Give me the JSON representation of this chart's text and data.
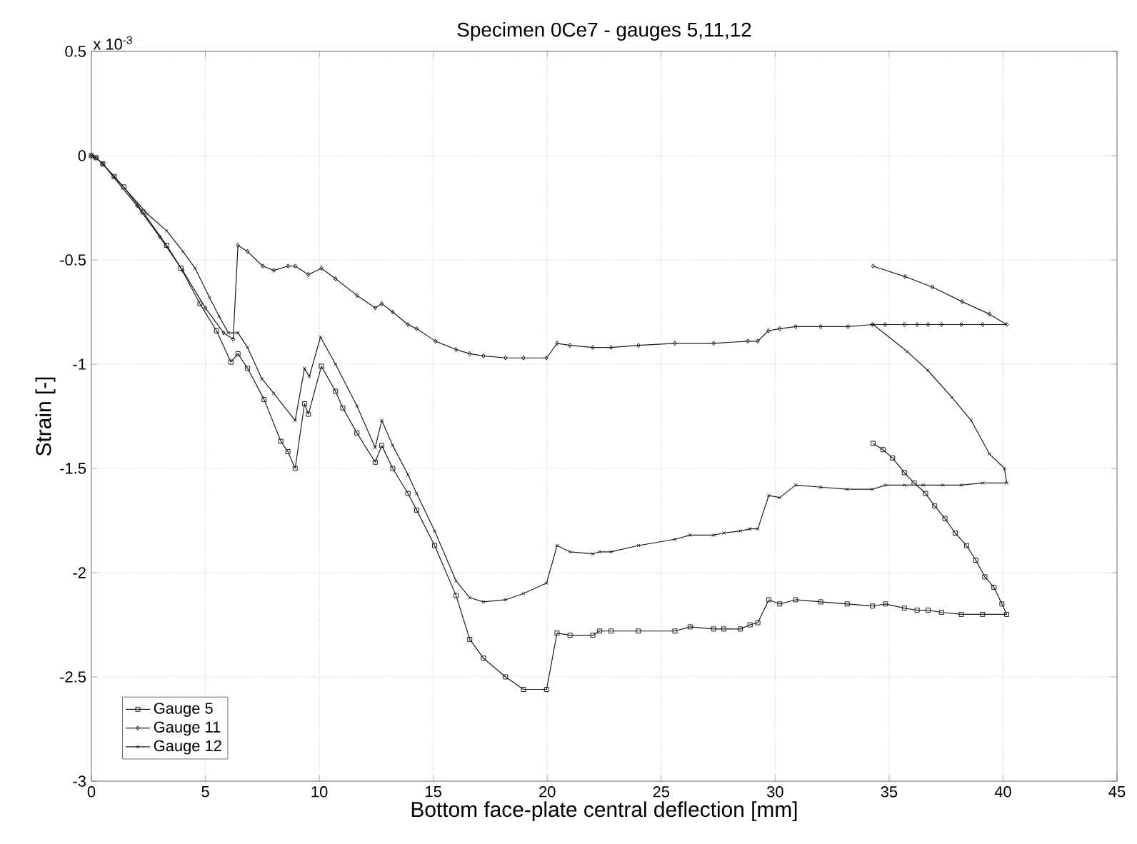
{
  "chart_data": {
    "type": "line",
    "title": "Specimen 0Ce7 - gauges 5,11,12",
    "xlabel": "Bottom face-plate central deflection [mm]",
    "ylabel": "Strain [-]",
    "annotations": [
      "x 10$^{-3}$"
    ],
    "xlim": [
      0,
      45
    ],
    "xticks": [
      0,
      5,
      10,
      15,
      20,
      25,
      30,
      35,
      40,
      45
    ],
    "ylim": [
      -3,
      0.5
    ],
    "yticks": [
      -3,
      -2.5,
      -2,
      -1.5,
      -1,
      -0.5,
      0,
      0.5
    ],
    "grid": true,
    "legend": "bottom left",
    "line_style": "solid",
    "series": [
      {
        "name": "Gauge 5",
        "color": "#1a1a1a",
        "marker": "square",
        "x": [
          0,
          0.2,
          0.5,
          1.0,
          1.42,
          2.26,
          3.3,
          3.93,
          4.76,
          5.49,
          6.12,
          6.43,
          6.85,
          7.58,
          8.31,
          8.62,
          8.94,
          9.35,
          9.52,
          10.09,
          10.71,
          11.03,
          11.65,
          12.45,
          12.74,
          13.22,
          13.89,
          14.27,
          15.06,
          16.0,
          16.6,
          17.2,
          18.17,
          18.96,
          19.97,
          20.43,
          21.0,
          22.0,
          22.3,
          22.8,
          24.0,
          25.6,
          26.27,
          27.3,
          27.75,
          28.47,
          28.9,
          29.24,
          29.72,
          30.2,
          30.9,
          32.0,
          33.16,
          34.27,
          34.84,
          35.67,
          36.23,
          36.71,
          37.3,
          38.17,
          39.1,
          40.16,
          39.95,
          39.6,
          39.2,
          38.8,
          38.4,
          37.9,
          37.45,
          37.0,
          36.6,
          36.1,
          35.67,
          35.15,
          34.73,
          34.3
        ],
        "values": [
          0,
          -0.01,
          -0.04,
          -0.1,
          -0.15,
          -0.27,
          -0.43,
          -0.54,
          -0.71,
          -0.84,
          -0.99,
          -0.95,
          -1.02,
          -1.17,
          -1.37,
          -1.42,
          -1.5,
          -1.19,
          -1.24,
          -1.01,
          -1.13,
          -1.21,
          -1.33,
          -1.47,
          -1.39,
          -1.5,
          -1.62,
          -1.7,
          -1.87,
          -2.11,
          -2.32,
          -2.41,
          -2.5,
          -2.56,
          -2.56,
          -2.29,
          -2.3,
          -2.3,
          -2.28,
          -2.28,
          -2.28,
          -2.28,
          -2.26,
          -2.27,
          -2.27,
          -2.27,
          -2.25,
          -2.24,
          -2.13,
          -2.15,
          -2.13,
          -2.14,
          -2.15,
          -2.16,
          -2.15,
          -2.17,
          -2.18,
          -2.18,
          -2.19,
          -2.2,
          -2.2,
          -2.2,
          -2.15,
          -2.07,
          -2.02,
          -1.94,
          -1.87,
          -1.81,
          -1.74,
          -1.68,
          -1.62,
          -1.57,
          -1.52,
          -1.45,
          -1.41,
          -1.38
        ]
      },
      {
        "name": "Gauge 11",
        "color": "#1a1a1a",
        "marker": "diamond",
        "x": [
          0,
          0.2,
          0.5,
          1.0,
          2.0,
          3.0,
          4.0,
          5.0,
          5.8,
          6.22,
          6.43,
          6.85,
          7.52,
          8.0,
          8.63,
          8.94,
          9.52,
          10.09,
          10.71,
          11.65,
          12.45,
          12.74,
          13.22,
          13.89,
          14.27,
          15.1,
          16.0,
          16.6,
          17.2,
          18.17,
          18.96,
          19.97,
          20.43,
          21.0,
          22.0,
          22.8,
          24.0,
          25.6,
          27.3,
          28.8,
          29.24,
          29.7,
          30.2,
          30.9,
          32.0,
          33.2,
          34.27,
          34.83,
          35.67,
          36.23,
          36.71,
          37.3,
          38.17,
          39.1,
          40.16,
          39.4,
          38.2,
          36.9,
          35.7,
          34.3
        ],
        "values": [
          0,
          -0.01,
          -0.04,
          null,
          -0.24,
          -0.39,
          -0.55,
          -0.73,
          -0.85,
          -0.88,
          -0.43,
          -0.46,
          -0.53,
          -0.55,
          -0.53,
          -0.53,
          -0.57,
          -0.54,
          -0.59,
          -0.67,
          -0.73,
          -0.71,
          -0.75,
          -0.81,
          -0.83,
          -0.89,
          -0.93,
          -0.95,
          -0.96,
          -0.97,
          -0.97,
          -0.97,
          -0.9,
          -0.91,
          -0.92,
          -0.92,
          -0.91,
          -0.9,
          -0.9,
          -0.89,
          -0.89,
          -0.84,
          -0.83,
          -0.82,
          -0.82,
          -0.82,
          -0.81,
          -0.81,
          -0.81,
          -0.81,
          -0.81,
          -0.81,
          -0.81,
          -0.81,
          -0.81,
          -0.76,
          -0.7,
          -0.63,
          -0.58,
          -0.53
        ]
      },
      {
        "name": "Gauge 12",
        "color": "#1a1a1a",
        "marker": "cross",
        "x": [
          0,
          0.2,
          0.5,
          1.0,
          2.46,
          3.3,
          4.02,
          4.55,
          5.18,
          5.6,
          6.01,
          6.43,
          6.85,
          7.48,
          8.0,
          8.94,
          9.35,
          9.56,
          10.05,
          10.71,
          11.65,
          12.45,
          12.74,
          13.22,
          13.89,
          14.27,
          15.06,
          16.0,
          16.6,
          17.2,
          18.17,
          18.96,
          19.97,
          20.43,
          21.0,
          22.0,
          22.3,
          22.8,
          24.0,
          25.6,
          26.27,
          27.3,
          27.75,
          28.47,
          28.9,
          29.24,
          29.72,
          30.2,
          30.9,
          32.0,
          33.16,
          34.27,
          34.84,
          35.67,
          36.5,
          37.35,
          38.17,
          39.1,
          40.16,
          40.06,
          39.4,
          38.6,
          37.76,
          36.7,
          35.8,
          34.3
        ],
        "values": [
          0,
          -0.01,
          -0.04,
          -0.1,
          -0.28,
          -0.36,
          -0.46,
          -0.54,
          -0.68,
          -0.77,
          -0.85,
          -0.85,
          -0.92,
          -1.07,
          -1.14,
          -1.27,
          -1.02,
          -1.06,
          -0.87,
          -1.0,
          -1.2,
          -1.4,
          -1.27,
          -1.39,
          -1.53,
          -1.62,
          -1.8,
          -2.04,
          -2.12,
          -2.14,
          -2.13,
          -2.1,
          -2.05,
          -1.87,
          -1.9,
          -1.91,
          -1.9,
          -1.9,
          -1.87,
          -1.84,
          -1.82,
          -1.82,
          -1.81,
          -1.8,
          -1.79,
          -1.79,
          -1.63,
          -1.64,
          -1.58,
          -1.59,
          -1.6,
          -1.6,
          -1.58,
          -1.58,
          -1.58,
          -1.58,
          -1.58,
          -1.57,
          -1.57,
          -1.5,
          -1.43,
          -1.27,
          -1.16,
          -1.03,
          -0.94,
          -0.81
        ]
      }
    ]
  }
}
